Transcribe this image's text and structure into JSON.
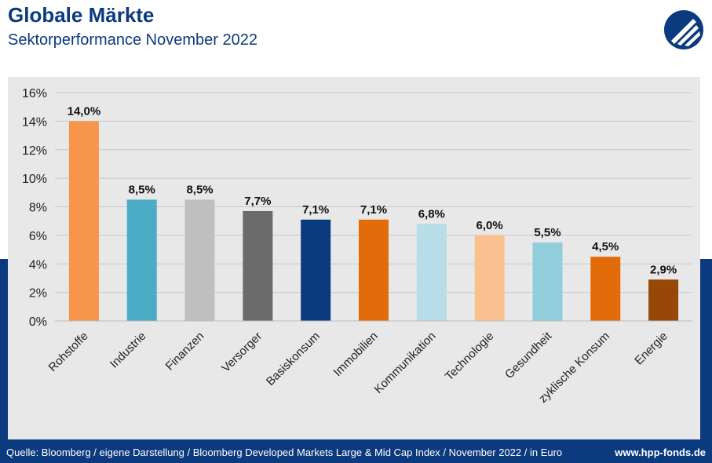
{
  "header": {
    "title": "Globale Märkte",
    "subtitle": "Sektorperformance November 2022"
  },
  "footer": {
    "source": "Quelle: Bloomberg / eigene Darstellung / Bloomberg Developed Markets Large & Mid Cap Index / November 2022 / in Euro",
    "url": "www.hpp-fonds.de"
  },
  "colors": {
    "brand_blue": "#0b3a7e",
    "panel_bg": "#e8e8e8"
  },
  "chart_data": {
    "type": "bar",
    "categories": [
      "Rohstoffe",
      "Industrie",
      "Finanzen",
      "Versorger",
      "Basiskonsum",
      "Immobilien",
      "Kommunikation",
      "Technologie",
      "Gesundheit",
      "zyklische Konsum",
      "Energie"
    ],
    "values": [
      14.0,
      8.5,
      8.5,
      7.7,
      7.1,
      7.1,
      6.8,
      6.0,
      5.5,
      4.5,
      2.9
    ],
    "data_labels": [
      "14,0%",
      "8,5%",
      "8,5%",
      "7,7%",
      "7,1%",
      "7,1%",
      "6,8%",
      "6,0%",
      "5,5%",
      "4,5%",
      "2,9%"
    ],
    "bar_colors": [
      "#f7964a",
      "#4bacc6",
      "#bfbfbf",
      "#6b6b6b",
      "#0b3a7e",
      "#e36c0a",
      "#b7dde8",
      "#fac090",
      "#92cddc",
      "#e36c0a",
      "#974806"
    ],
    "ylim": [
      0,
      16
    ],
    "yticks": [
      0,
      2,
      4,
      6,
      8,
      10,
      12,
      14,
      16
    ],
    "ytick_labels": [
      "0%",
      "2%",
      "4%",
      "6%",
      "8%",
      "10%",
      "12%",
      "14%",
      "16%"
    ],
    "grid": true,
    "xlabel": "",
    "ylabel": ""
  }
}
